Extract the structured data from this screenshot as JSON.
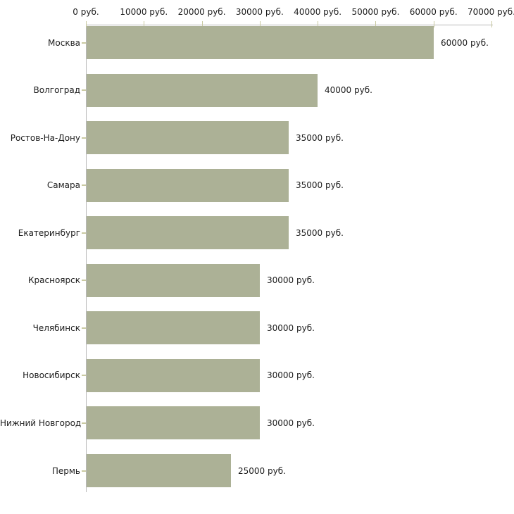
{
  "chart_data": {
    "type": "bar",
    "orientation": "horizontal",
    "title": "",
    "xlabel": "",
    "ylabel": "",
    "categories": [
      "Москва",
      "Волгоград",
      "Ростов-На-Дону",
      "Самара",
      "Екатеринбург",
      "Красноярск",
      "Челябинск",
      "Новосибирск",
      "Нижний Новгород",
      "Пермь"
    ],
    "values": [
      60000,
      40000,
      35000,
      35000,
      35000,
      30000,
      30000,
      30000,
      30000,
      25000
    ],
    "value_labels": [
      "60000 руб.",
      "40000 руб.",
      "35000 руб.",
      "35000 руб.",
      "35000 руб.",
      "30000 руб.",
      "30000 руб.",
      "30000 руб.",
      "30000 руб.",
      "25000 руб."
    ],
    "x_axis": {
      "position": "top",
      "min": 0,
      "max": 70000,
      "ticks": [
        0,
        10000,
        20000,
        30000,
        40000,
        50000,
        60000,
        70000
      ],
      "tick_labels": [
        "0 руб.",
        "10000 руб.",
        "20000 руб.",
        "30000 руб.",
        "40000 руб.",
        "50000 руб.",
        "60000 руб.",
        "70000 руб."
      ]
    },
    "legend": null,
    "grid": false,
    "colors": {
      "bar": "#acb196",
      "axis_line": "#b9b9b9",
      "tick_mark": "#c9c9a1",
      "text": "#1c1c1c",
      "background": "#ffffff"
    }
  }
}
